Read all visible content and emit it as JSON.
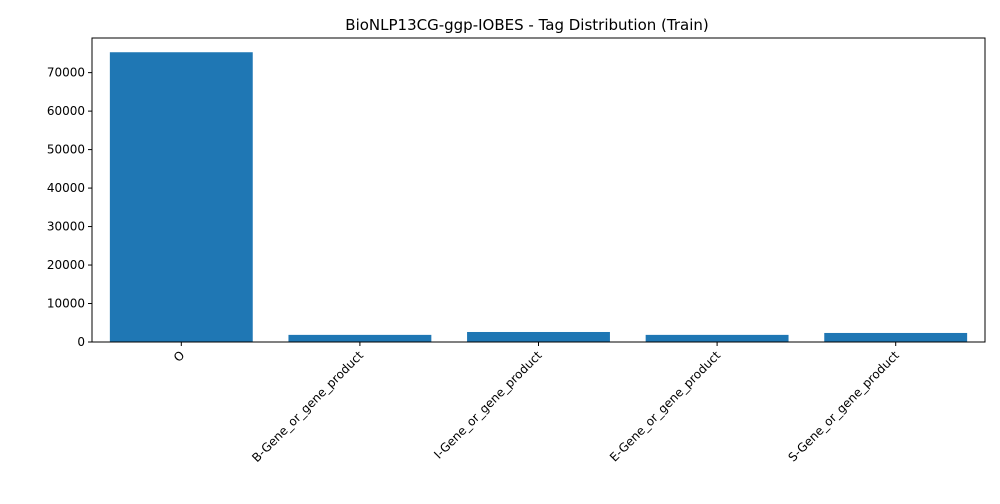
{
  "chart_data": {
    "type": "bar",
    "title": "BioNLP13CG-ggp-IOBES - Tag Distribution (Train)",
    "xlabel": "",
    "ylabel": "",
    "categories": [
      "O",
      "B-Gene_or_gene_product",
      "I-Gene_or_gene_product",
      "E-Gene_or_gene_product",
      "S-Gene_or_gene_product"
    ],
    "values": [
      75300,
      1850,
      2600,
      1850,
      2350
    ],
    "ylim": [
      0,
      79000
    ],
    "yticks": [
      0,
      10000,
      20000,
      30000,
      40000,
      50000,
      60000,
      70000
    ],
    "grid": false,
    "legend": "none",
    "bar_color": "#1f77b4"
  }
}
